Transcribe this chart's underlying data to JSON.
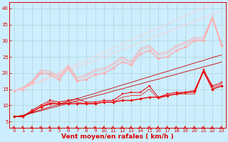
{
  "background_color": "#cceeff",
  "grid_color": "#aacccc",
  "xlabel": "Vent moyen/en rafales ( km/h )",
  "x": [
    0,
    1,
    2,
    3,
    4,
    5,
    6,
    7,
    8,
    9,
    10,
    11,
    12,
    13,
    14,
    15,
    16,
    17,
    18,
    19,
    20,
    21,
    22,
    23
  ],
  "dark_lines": [
    {
      "y": [
        6.5,
        6.5,
        8.0,
        9.5,
        10.5,
        10.5,
        10.5,
        10.5,
        10.5,
        10.5,
        11.0,
        11.0,
        11.5,
        11.5,
        12.0,
        12.5,
        12.5,
        13.0,
        13.5,
        14.0,
        14.5,
        20.5,
        15.0,
        16.0
      ],
      "color": "#ee0000",
      "lw": 1.0,
      "marker": "D",
      "ms": 2.0
    },
    {
      "y": [
        6.5,
        6.5,
        8.5,
        10.0,
        11.5,
        11.0,
        11.5,
        12.0,
        11.0,
        11.0,
        11.5,
        11.5,
        13.5,
        14.0,
        14.0,
        16.0,
        12.5,
        13.5,
        14.0,
        14.0,
        14.0,
        21.0,
        16.0,
        17.0
      ],
      "color": "#ee0000",
      "lw": 0.7,
      "marker": "s",
      "ms": 1.8
    },
    {
      "y": [
        6.5,
        6.5,
        8.0,
        9.5,
        11.0,
        10.5,
        11.0,
        11.0,
        10.5,
        10.5,
        11.0,
        11.0,
        12.5,
        13.0,
        13.0,
        15.0,
        12.0,
        13.0,
        13.5,
        13.5,
        13.5,
        20.5,
        15.5,
        16.5
      ],
      "color": "#ee0000",
      "lw": 0.5,
      "marker": null,
      "ms": 0
    },
    {
      "y": [
        6.5,
        6.8,
        7.6,
        8.3,
        9.1,
        9.8,
        10.6,
        11.4,
        12.1,
        12.9,
        13.6,
        14.4,
        15.1,
        15.9,
        16.6,
        17.4,
        18.1,
        18.9,
        19.6,
        20.4,
        21.1,
        21.9,
        22.6,
        23.4
      ],
      "color": "#cc0000",
      "lw": 0.6,
      "marker": null,
      "ms": 0
    },
    {
      "y": [
        6.5,
        6.9,
        7.8,
        8.6,
        9.5,
        10.3,
        11.2,
        12.0,
        12.9,
        13.7,
        14.6,
        15.4,
        16.3,
        17.1,
        18.0,
        18.8,
        19.7,
        20.5,
        21.4,
        22.2,
        23.1,
        23.9,
        24.8,
        25.6
      ],
      "color": "#cc0000",
      "lw": 0.6,
      "marker": null,
      "ms": 0
    }
  ],
  "light_lines": [
    {
      "y": [
        14.5,
        15.0,
        17.0,
        20.0,
        19.5,
        18.0,
        21.5,
        17.5,
        18.0,
        19.5,
        20.0,
        21.5,
        23.5,
        22.5,
        26.0,
        27.0,
        24.5,
        25.0,
        27.0,
        28.0,
        30.0,
        30.0,
        37.0,
        28.5
      ],
      "color": "#ffaaaa",
      "lw": 1.0,
      "marker": "D",
      "ms": 2.0
    },
    {
      "y": [
        14.5,
        15.5,
        17.5,
        21.0,
        20.5,
        19.0,
        22.5,
        18.5,
        19.5,
        21.0,
        21.5,
        23.0,
        25.0,
        23.5,
        27.5,
        28.5,
        26.0,
        26.5,
        28.5,
        29.5,
        31.0,
        31.0,
        37.5,
        29.0
      ],
      "color": "#ffaaaa",
      "lw": 0.7,
      "marker": null,
      "ms": 0
    },
    {
      "y": [
        14.5,
        15.5,
        17.0,
        20.5,
        20.0,
        18.5,
        22.0,
        18.0,
        19.0,
        20.5,
        21.0,
        22.5,
        24.5,
        23.0,
        27.0,
        28.0,
        25.5,
        26.0,
        28.0,
        29.0,
        30.5,
        30.5,
        37.0,
        28.5
      ],
      "color": "#ffaaaa",
      "lw": 0.5,
      "marker": null,
      "ms": 0
    },
    {
      "y": [
        14.5,
        15.1,
        16.2,
        17.3,
        18.4,
        19.5,
        20.6,
        21.7,
        22.8,
        23.9,
        25.0,
        26.1,
        27.2,
        28.3,
        29.4,
        30.5,
        31.6,
        32.7,
        33.8,
        34.9,
        36.0,
        37.1,
        38.2,
        39.3
      ],
      "color": "#ffcccc",
      "lw": 0.6,
      "marker": null,
      "ms": 0
    },
    {
      "y": [
        14.5,
        15.2,
        16.4,
        17.7,
        18.9,
        20.2,
        21.4,
        22.7,
        23.9,
        25.2,
        26.4,
        27.7,
        28.9,
        30.2,
        31.4,
        32.7,
        33.9,
        35.2,
        36.4,
        37.7,
        38.9,
        40.2,
        41.4,
        42.7
      ],
      "color": "#ffcccc",
      "lw": 0.6,
      "marker": null,
      "ms": 0
    }
  ],
  "xticks": [
    0,
    1,
    2,
    3,
    4,
    5,
    6,
    7,
    8,
    9,
    10,
    11,
    12,
    13,
    14,
    15,
    16,
    17,
    18,
    19,
    20,
    21,
    22,
    23
  ],
  "yticks": [
    5,
    10,
    15,
    20,
    25,
    30,
    35,
    40
  ],
  "xlim": [
    -0.5,
    23.5
  ],
  "ylim": [
    3,
    42
  ],
  "tick_color": "#dd0000",
  "label_color": "#dd0000",
  "tick_fontsize": 5,
  "xlabel_fontsize": 6.5
}
